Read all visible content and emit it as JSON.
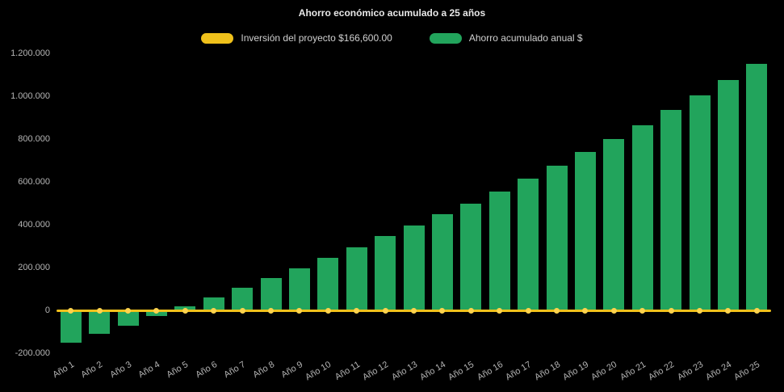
{
  "chart_data": {
    "type": "bar",
    "title": "Ahorro económico acumulado a 25 años",
    "categories": [
      "Año 1",
      "Año 2",
      "Año 3",
      "Año 4",
      "Año 5",
      "Año 6",
      "Año 7",
      "Año 8",
      "Año 9",
      "Año 10",
      "Año 11",
      "Año 12",
      "Año 13",
      "Año 14",
      "Año 15",
      "Año 16",
      "Año 17",
      "Año 18",
      "Año 19",
      "Año 20",
      "Año 21",
      "Año 22",
      "Año 23",
      "Año 24",
      "Año 25"
    ],
    "series": [
      {
        "name": "Inversión del proyecto $166,600.00",
        "type": "line",
        "color": "#f0c11b",
        "values": [
          0,
          0,
          0,
          0,
          0,
          0,
          0,
          0,
          0,
          0,
          0,
          0,
          0,
          0,
          0,
          0,
          0,
          0,
          0,
          0,
          0,
          0,
          0,
          0,
          0
        ]
      },
      {
        "name": "Ahorro acumulado anual $",
        "type": "bar",
        "color": "#22a45c",
        "values": [
          -150000,
          -110000,
          -70000,
          -25000,
          20000,
          62000,
          105000,
          150000,
          198000,
          246000,
          296000,
          347000,
          398000,
          448000,
          500000,
          556000,
          614000,
          674000,
          738000,
          800000,
          866000,
          934000,
          1004000,
          1076000,
          1150000
        ]
      }
    ],
    "ylim": [
      -200000,
      1200000
    ],
    "y_ticks": [
      -200000,
      0,
      200000,
      400000,
      600000,
      800000,
      1000000,
      1200000
    ],
    "y_tick_labels": [
      "-200.000",
      "0",
      "200.000",
      "400.000",
      "600.000",
      "800.000",
      "1.000.000",
      "1.200.000"
    ],
    "grid": false,
    "legend_position": "top",
    "background": "#000000"
  },
  "legend": {
    "items": [
      {
        "label": "Inversión del proyecto $166,600.00",
        "color": "#f0c11b"
      },
      {
        "label": "Ahorro acumulado anual $",
        "color": "#22a45c"
      }
    ]
  },
  "colors": {
    "title_text": "#e8e8e8",
    "legend_text": "#d0d0d0",
    "tick_text": "#b5b5b5",
    "dot": "#ffd34e",
    "background": "#000000"
  }
}
